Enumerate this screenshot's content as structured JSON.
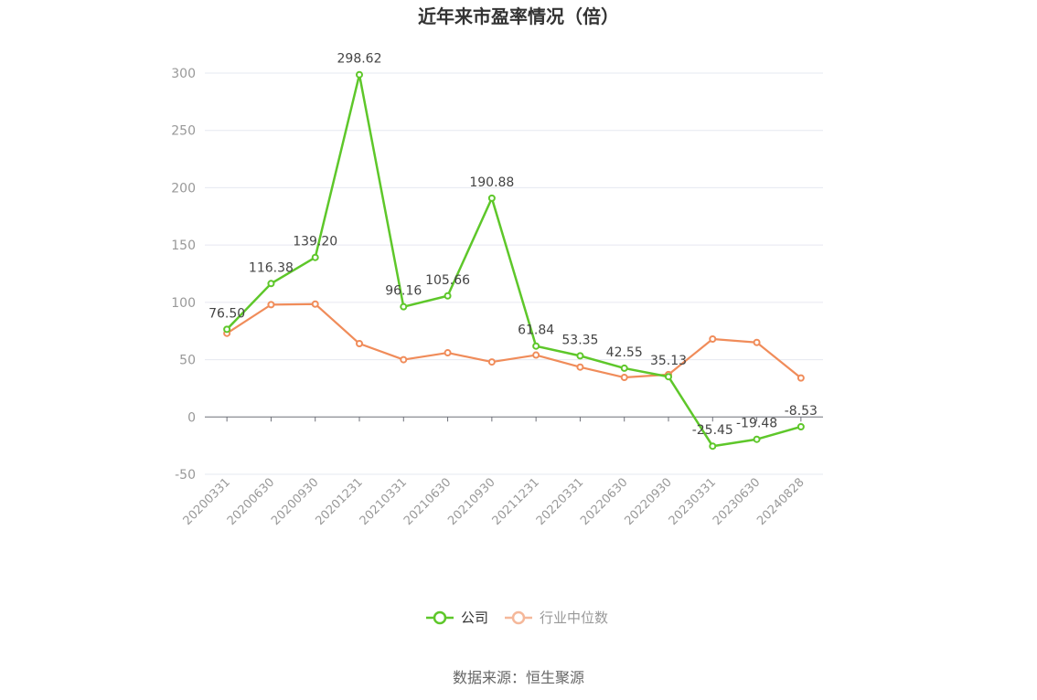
{
  "chart_data": {
    "type": "line",
    "title": "近年来市盈率情况（倍）",
    "categories": [
      "20200331",
      "20200630",
      "20200930",
      "20201231",
      "20210331",
      "20210630",
      "20210930",
      "20211231",
      "20220331",
      "20220630",
      "20220930",
      "20230331",
      "20230630",
      "20240828"
    ],
    "series": [
      {
        "name": "公司",
        "color": "#5ec72a",
        "values": [
          76.5,
          116.38,
          139.2,
          298.62,
          96.16,
          105.66,
          190.88,
          61.84,
          53.35,
          42.55,
          35.13,
          -25.45,
          -19.48,
          -8.53
        ],
        "labels": [
          "76.50",
          "116.38",
          "139.20",
          "298.62",
          "96.16",
          "105.66",
          "190.88",
          "61.84",
          "53.35",
          "42.55",
          "35.13",
          "-25.45",
          "-19.48",
          "-8.53"
        ]
      },
      {
        "name": "行业中位数",
        "color": "#f08c5a",
        "values": [
          73,
          98,
          98.5,
          64,
          50,
          56,
          48,
          54,
          43.5,
          34.5,
          37,
          68,
          65,
          34
        ]
      }
    ],
    "yticks": [
      "300",
      "250",
      "200",
      "150",
      "100",
      "50",
      "0",
      "-50"
    ],
    "ylim": [
      -50,
      300
    ],
    "grid": true,
    "legend_position": "bottom-center"
  },
  "source": "数据来源：恒生聚源"
}
